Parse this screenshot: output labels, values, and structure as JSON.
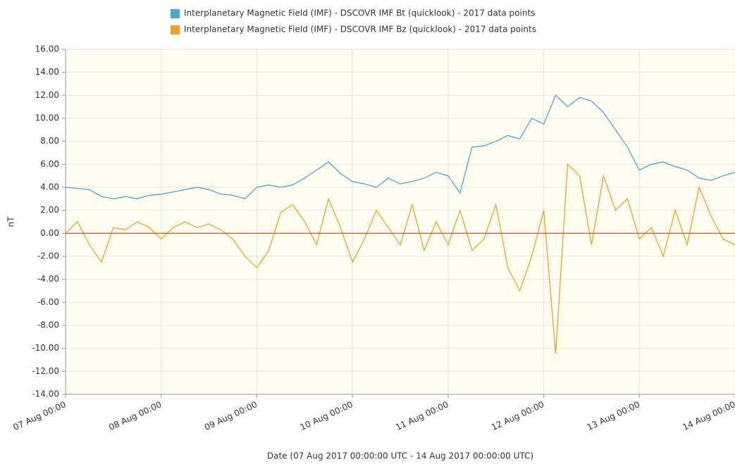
{
  "chart_data": {
    "type": "line",
    "xlabel": "Date (07 Aug 2017 00:00:00 UTC - 14 Aug 2017 00:00:00 UTC)",
    "ylabel": "nT",
    "x": [
      "07 Aug 00:00",
      "07 Aug 03:00",
      "07 Aug 06:00",
      "07 Aug 09:00",
      "07 Aug 12:00",
      "07 Aug 15:00",
      "07 Aug 18:00",
      "07 Aug 21:00",
      "08 Aug 00:00",
      "08 Aug 03:00",
      "08 Aug 06:00",
      "08 Aug 09:00",
      "08 Aug 12:00",
      "08 Aug 15:00",
      "08 Aug 18:00",
      "08 Aug 21:00",
      "09 Aug 00:00",
      "09 Aug 03:00",
      "09 Aug 06:00",
      "09 Aug 09:00",
      "09 Aug 12:00",
      "09 Aug 15:00",
      "09 Aug 18:00",
      "09 Aug 21:00",
      "10 Aug 00:00",
      "10 Aug 03:00",
      "10 Aug 06:00",
      "10 Aug 09:00",
      "10 Aug 12:00",
      "10 Aug 15:00",
      "10 Aug 18:00",
      "10 Aug 21:00",
      "11 Aug 00:00",
      "11 Aug 03:00",
      "11 Aug 06:00",
      "11 Aug 09:00",
      "11 Aug 12:00",
      "11 Aug 15:00",
      "11 Aug 18:00",
      "11 Aug 21:00",
      "12 Aug 00:00",
      "12 Aug 03:00",
      "12 Aug 06:00",
      "12 Aug 09:00",
      "12 Aug 12:00",
      "12 Aug 15:00",
      "12 Aug 18:00",
      "12 Aug 21:00",
      "13 Aug 00:00",
      "13 Aug 03:00",
      "13 Aug 06:00",
      "13 Aug 09:00",
      "13 Aug 12:00",
      "13 Aug 15:00",
      "13 Aug 18:00",
      "13 Aug 21:00",
      "14 Aug 00:00"
    ],
    "series": [
      {
        "name": "Interplanetary Magnetic Field (IMF) - DSCOVR IMF Bt (quicklook) - 2017 data points",
        "color": "#4aa9c5",
        "values": [
          4,
          3.9,
          3.8,
          3.2,
          3.0,
          3.2,
          3.0,
          3.3,
          3.4,
          3.6,
          3.8,
          4.0,
          3.8,
          3.4,
          3.3,
          3.0,
          4.0,
          4.2,
          4.0,
          4.2,
          4.8,
          5.5,
          6.2,
          5.2,
          4.5,
          4.3,
          4.0,
          4.8,
          4.3,
          4.5,
          4.8,
          5.3,
          5.0,
          3.5,
          7.5,
          7.6,
          8.0,
          8.5,
          8.2,
          10.0,
          9.5,
          12.0,
          11.0,
          11.8,
          11.5,
          10.5,
          9.0,
          7.5,
          5.5,
          6.0,
          6.2,
          5.8,
          5.5,
          4.8,
          4.6,
          5.0,
          5.3
        ]
      },
      {
        "name": "Interplanetary Magnetic Field (IMF) - DSCOVR IMF Bz (quicklook) - 2017 data points",
        "color": "#f0a12c",
        "values": [
          0.0,
          1.0,
          -1.0,
          -2.5,
          0.5,
          0.3,
          1.0,
          0.5,
          -0.5,
          0.5,
          1.0,
          0.5,
          0.8,
          0.3,
          -0.5,
          -2.0,
          -3.0,
          -1.5,
          1.8,
          2.5,
          1.0,
          -1.0,
          3.0,
          0.5,
          -2.5,
          -0.5,
          2.0,
          0.5,
          -1.0,
          2.5,
          -1.5,
          1.0,
          -1.0,
          2.0,
          -1.5,
          -0.5,
          2.5,
          -3.0,
          -5.0,
          -2.0,
          2.0,
          -10.5,
          6.0,
          5.0,
          -1.0,
          5.0,
          2.0,
          3.0,
          -0.5,
          0.5,
          -2.0,
          2.0,
          -1.0,
          4.0,
          1.5,
          -0.5,
          -1.0
        ]
      }
    ],
    "xlim": [
      "07 Aug 00:00",
      "14 Aug 00:00"
    ],
    "xticks": [
      "07 Aug 00:00",
      "08 Aug 00:00",
      "09 Aug 00:00",
      "10 Aug 00:00",
      "11 Aug 00:00",
      "12 Aug 00:00",
      "13 Aug 00:00",
      "14 Aug 00:00"
    ],
    "ylim": [
      -14,
      16
    ],
    "yticks": [
      {
        "value": -14,
        "label": "-14.00"
      },
      {
        "value": -12,
        "label": "-12.00"
      },
      {
        "value": -10,
        "label": "-10.00"
      },
      {
        "value": -8,
        "label": "-8.00"
      },
      {
        "value": -6,
        "label": "-6.00"
      },
      {
        "value": -4,
        "label": "-4.00"
      },
      {
        "value": -2,
        "label": "-2.00"
      },
      {
        "value": 0,
        "label": "0.00"
      },
      {
        "value": 2,
        "label": "2.00"
      },
      {
        "value": 4,
        "label": "4.00"
      },
      {
        "value": 6,
        "label": "6.00"
      },
      {
        "value": 8,
        "label": "8.00"
      },
      {
        "value": 10,
        "label": "10.00"
      },
      {
        "value": 12,
        "label": "12.00"
      },
      {
        "value": 14,
        "label": "14.00"
      },
      {
        "value": 16,
        "label": "16.00"
      }
    ],
    "grid": true,
    "zero_line": {
      "value": 0,
      "color": "#e0401f"
    },
    "legend": "top"
  }
}
